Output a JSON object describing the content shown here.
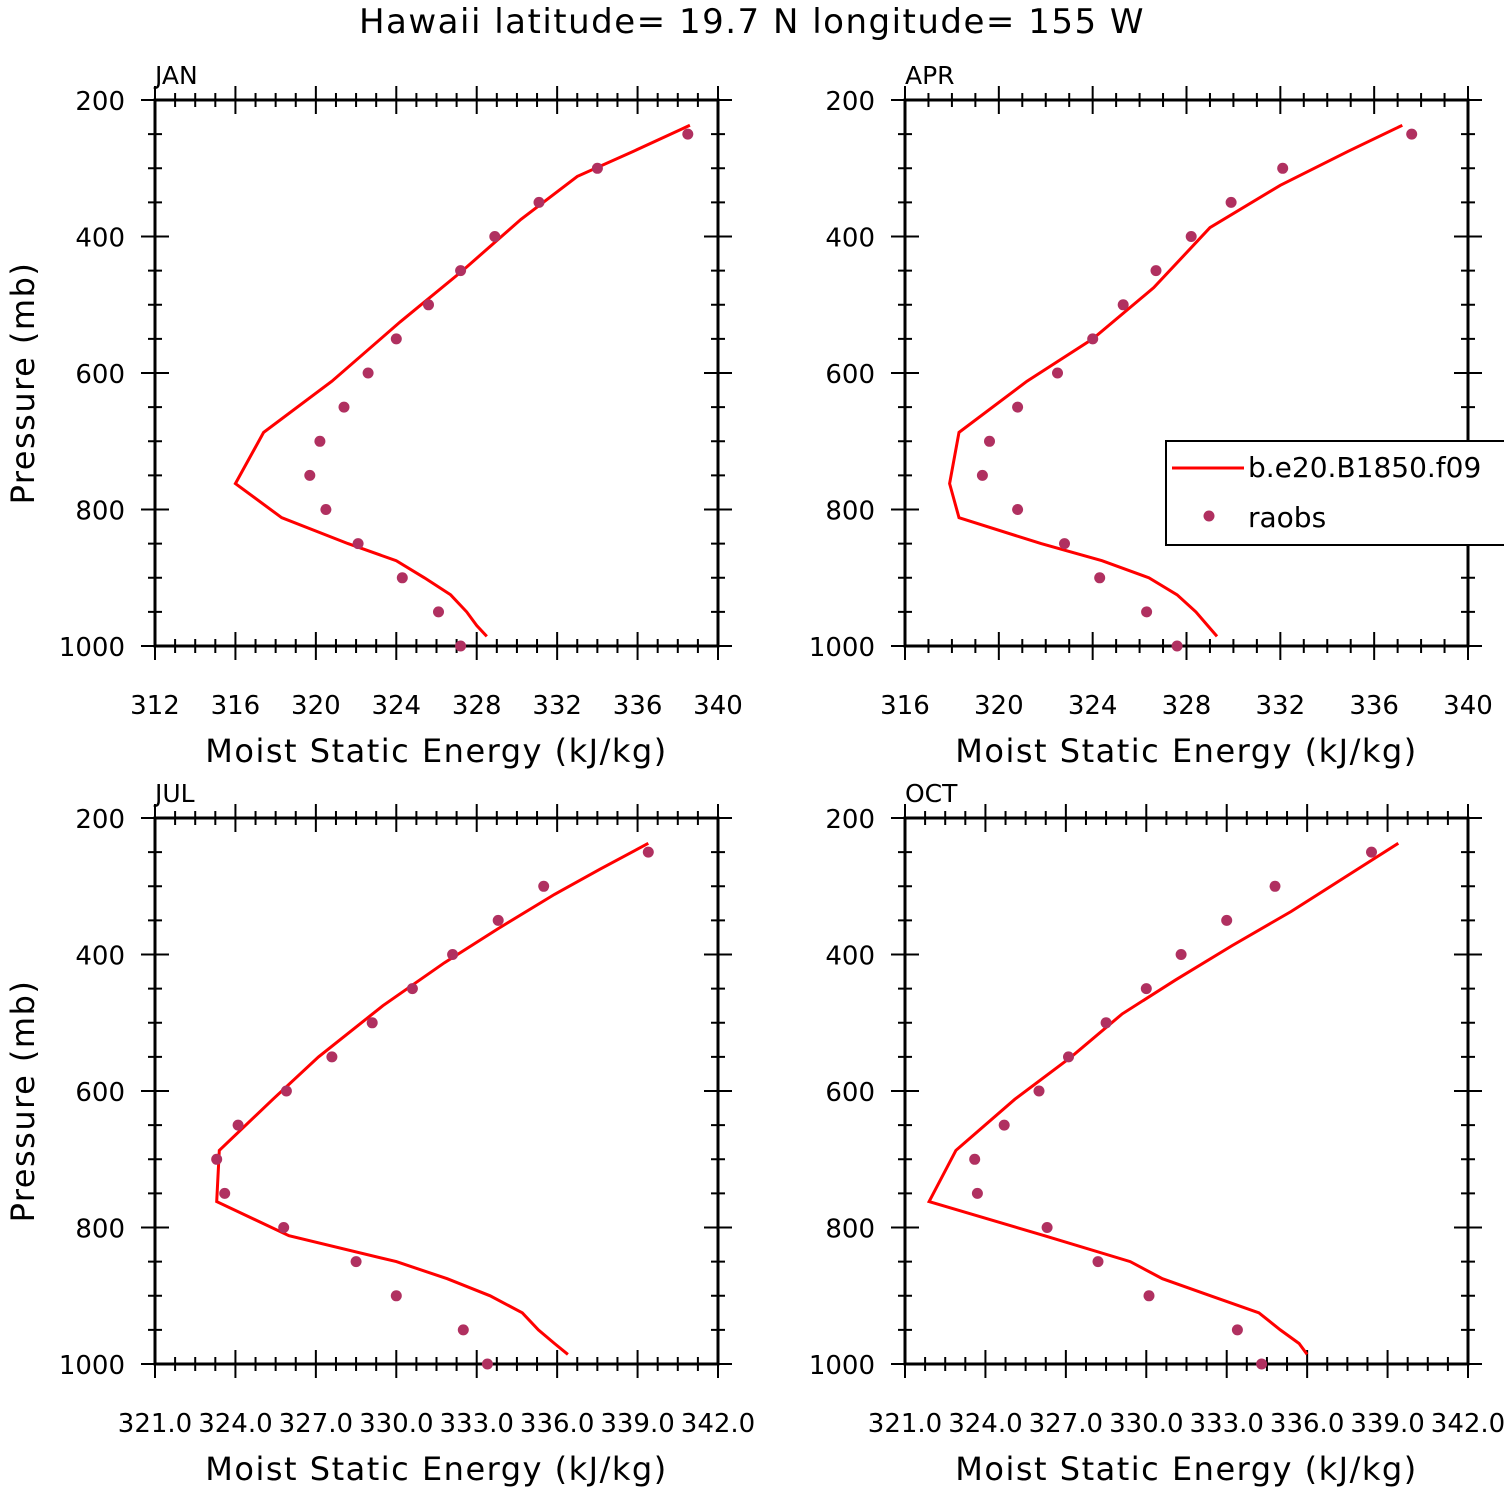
{
  "title": "Hawaii  latitude= 19.7 N longitude= 155 W",
  "legend": {
    "model_label": "b.e20.B1850.f09",
    "obs_label": "raobs"
  },
  "colors": {
    "model": "#ff0000",
    "obs": "#b03060",
    "axis": "#000000"
  },
  "chart_data": [
    {
      "type": "line",
      "panel": "JAN",
      "title": "JAN",
      "xlabel": "Moist Static Energy (kJ/kg)",
      "ylabel": "Pressure (mb)",
      "xlim": [
        312,
        340
      ],
      "xticks": [
        312,
        316,
        320,
        324,
        328,
        332,
        336,
        340
      ],
      "xtick_labels": [
        "312",
        "316",
        "320",
        "324",
        "328",
        "332",
        "336",
        "340"
      ],
      "ylim": [
        200,
        1000
      ],
      "yticks": [
        200,
        400,
        600,
        800,
        1000
      ],
      "yaxis_inverted": true,
      "legend": false,
      "series": [
        {
          "name": "b.e20.B1850.f09",
          "kind": "line",
          "x": [
            328.5,
            328.0,
            327.5,
            326.7,
            325.4,
            324.0,
            321.6,
            318.3,
            316.0,
            317.4,
            320.8,
            324.2,
            327.3,
            330.2,
            333.0,
            335.8,
            338.6
          ],
          "y": [
            986,
            970,
            950,
            925,
            900,
            875,
            850,
            812,
            762,
            687,
            612,
            525,
            450,
            375,
            312,
            275,
            237
          ]
        },
        {
          "name": "raobs",
          "kind": "scatter",
          "x": [
            327.2,
            326.1,
            324.3,
            322.1,
            320.5,
            319.7,
            320.2,
            321.4,
            322.6,
            324.0,
            325.6,
            327.2,
            328.9,
            331.1,
            334.0,
            338.5
          ],
          "y": [
            1000,
            950,
            900,
            850,
            800,
            750,
            700,
            650,
            600,
            550,
            500,
            450,
            400,
            350,
            300,
            250
          ]
        }
      ]
    },
    {
      "type": "line",
      "panel": "APR",
      "title": "APR",
      "xlabel": "Moist Static Energy (kJ/kg)",
      "ylabel": "",
      "xlim": [
        316,
        340
      ],
      "xticks": [
        316,
        320,
        324,
        328,
        332,
        336,
        340
      ],
      "xtick_labels": [
        "316",
        "320",
        "324",
        "328",
        "332",
        "336",
        "340"
      ],
      "ylim": [
        200,
        1000
      ],
      "yticks": [
        200,
        400,
        600,
        800,
        1000
      ],
      "yaxis_inverted": true,
      "legend": true,
      "series": [
        {
          "name": "b.e20.B1850.f09",
          "kind": "line",
          "x": [
            329.3,
            328.9,
            328.4,
            327.6,
            326.4,
            324.4,
            321.8,
            318.3,
            317.9,
            318.3,
            321.2,
            324.0,
            326.6,
            329.0,
            332.0,
            334.9,
            337.2
          ],
          "y": [
            986,
            970,
            950,
            925,
            900,
            875,
            850,
            812,
            762,
            687,
            612,
            550,
            475,
            387,
            325,
            275,
            237
          ]
        },
        {
          "name": "raobs",
          "kind": "scatter",
          "x": [
            327.6,
            326.3,
            324.3,
            322.8,
            320.8,
            319.3,
            319.6,
            320.8,
            322.5,
            324.0,
            325.3,
            326.7,
            328.2,
            329.9,
            332.1,
            337.6
          ],
          "y": [
            1000,
            950,
            900,
            850,
            800,
            750,
            700,
            650,
            600,
            550,
            500,
            450,
            400,
            350,
            300,
            250
          ]
        }
      ]
    },
    {
      "type": "line",
      "panel": "JUL",
      "title": "JUL",
      "xlabel": "Moist Static Energy (kJ/kg)",
      "ylabel": "Pressure (mb)",
      "xlim": [
        321.0,
        342.0
      ],
      "xticks": [
        321.0,
        324.0,
        327.0,
        330.0,
        333.0,
        336.0,
        339.0,
        342.0
      ],
      "xtick_labels": [
        "321.0",
        "324.0",
        "327.0",
        "330.0",
        "333.0",
        "336.0",
        "339.0",
        "342.0"
      ],
      "ylim": [
        200,
        1000
      ],
      "yticks": [
        200,
        400,
        600,
        800,
        1000
      ],
      "yaxis_inverted": true,
      "legend": false,
      "series": [
        {
          "name": "b.e20.B1850.f09",
          "kind": "line",
          "x": [
            336.4,
            335.9,
            335.3,
            334.7,
            333.5,
            331.9,
            330.0,
            326.0,
            323.3,
            323.4,
            325.4,
            327.1,
            329.5,
            331.8,
            333.8,
            335.9,
            337.6,
            339.4
          ],
          "y": [
            986,
            970,
            950,
            925,
            900,
            875,
            850,
            812,
            762,
            687,
            612,
            550,
            475,
            412,
            362,
            312,
            275,
            237
          ]
        },
        {
          "name": "raobs",
          "kind": "scatter",
          "x": [
            333.4,
            332.5,
            330.0,
            328.5,
            325.8,
            323.6,
            323.3,
            324.1,
            325.9,
            327.6,
            329.1,
            330.6,
            332.1,
            333.8,
            335.5,
            339.4
          ],
          "y": [
            1000,
            950,
            900,
            850,
            800,
            750,
            700,
            650,
            600,
            550,
            500,
            450,
            400,
            350,
            300,
            250
          ]
        }
      ]
    },
    {
      "type": "line",
      "panel": "OCT",
      "title": "OCT",
      "xlabel": "Moist Static Energy (kJ/kg)",
      "ylabel": "",
      "xlim": [
        321.0,
        342.0
      ],
      "xticks": [
        321.0,
        324.0,
        327.0,
        330.0,
        333.0,
        336.0,
        339.0,
        342.0
      ],
      "xtick_labels": [
        "321.0",
        "324.0",
        "327.0",
        "330.0",
        "333.0",
        "336.0",
        "339.0",
        "342.0"
      ],
      "ylim": [
        200,
        1000
      ],
      "yticks": [
        200,
        400,
        600,
        800,
        1000
      ],
      "yaxis_inverted": true,
      "legend": false,
      "series": [
        {
          "name": "b.e20.B1850.f09",
          "kind": "line",
          "x": [
            336.0,
            335.7,
            335.0,
            334.2,
            332.4,
            330.6,
            329.4,
            326.2,
            321.9,
            322.9,
            325.1,
            327.2,
            329.1,
            331.1,
            333.2,
            335.4,
            337.4,
            339.4
          ],
          "y": [
            986,
            970,
            950,
            925,
            900,
            875,
            850,
            812,
            762,
            687,
            612,
            550,
            487,
            437,
            387,
            337,
            287,
            237
          ]
        },
        {
          "name": "raobs",
          "kind": "scatter",
          "x": [
            334.3,
            333.4,
            330.1,
            328.2,
            326.3,
            323.7,
            323.6,
            324.7,
            326.0,
            327.1,
            328.5,
            330.0,
            331.3,
            333.0,
            334.8,
            338.4
          ],
          "y": [
            1000,
            950,
            900,
            850,
            800,
            750,
            700,
            650,
            600,
            550,
            500,
            450,
            400,
            350,
            300,
            250
          ]
        }
      ]
    }
  ]
}
